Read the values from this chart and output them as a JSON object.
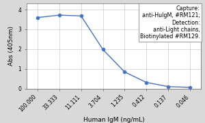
{
  "x_labels": [
    "100.000",
    "33.333",
    "11.111",
    "3.704",
    "1.235",
    "0.412",
    "0.137",
    "0.046"
  ],
  "x_values": [
    1,
    2,
    3,
    4,
    5,
    6,
    7,
    8
  ],
  "y_values": [
    3.6,
    3.72,
    3.68,
    1.98,
    0.84,
    0.31,
    0.1,
    0.06
  ],
  "xlabel": "Human IgM (ng/mL)",
  "ylabel": "Abs (405nm)",
  "ylim": [
    0,
    4.3
  ],
  "yticks": [
    0,
    1,
    2,
    3,
    4
  ],
  "line_color": "#4472C4",
  "marker_color": "#4472C4",
  "background_color": "#d9d9d9",
  "plot_bg_color": "#ffffff",
  "annotation_lines": [
    "Capture:",
    "anti-HuIgM, #RM121;",
    "Detection:",
    "anti-Light chains,",
    "Biotinylated #RM129."
  ],
  "annotation_fontsize": 5.8,
  "axis_fontsize": 6.5,
  "tick_fontsize": 5.5,
  "xlabel_fontsize": 6.5
}
